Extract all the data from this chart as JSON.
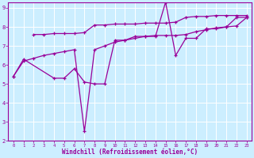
{
  "title": "",
  "xlabel": "Windchill (Refroidissement éolien,°C)",
  "ylabel": "",
  "bg_color": "#cceeff",
  "line_color": "#990099",
  "grid_color": "#ffffff",
  "xlim": [
    -0.5,
    23.5
  ],
  "ylim": [
    2,
    9.3
  ],
  "xticks": [
    0,
    1,
    2,
    3,
    4,
    5,
    6,
    7,
    8,
    9,
    10,
    11,
    12,
    13,
    14,
    15,
    16,
    17,
    18,
    19,
    20,
    21,
    22,
    23
  ],
  "yticks": [
    2,
    3,
    4,
    5,
    6,
    7,
    8,
    9
  ],
  "line1_x": [
    0,
    1,
    4,
    5,
    6,
    7,
    8,
    9,
    10,
    11,
    12,
    13,
    14,
    15,
    16,
    17,
    18,
    19,
    20,
    21,
    22,
    23
  ],
  "line1_y": [
    5.4,
    6.3,
    5.3,
    5.3,
    5.8,
    5.1,
    5.0,
    5.0,
    7.3,
    7.3,
    7.5,
    7.5,
    7.5,
    9.3,
    6.5,
    7.4,
    7.4,
    7.9,
    7.9,
    8.0,
    8.5,
    8.5
  ],
  "line2_x": [
    2,
    3,
    4,
    5,
    6,
    7,
    8,
    9,
    10,
    11,
    12,
    13,
    14,
    15,
    16,
    17,
    18,
    19,
    20,
    21,
    22,
    23
  ],
  "line2_y": [
    7.6,
    7.6,
    7.65,
    7.65,
    7.65,
    7.7,
    8.1,
    8.1,
    8.15,
    8.15,
    8.15,
    8.2,
    8.2,
    8.2,
    8.25,
    8.5,
    8.55,
    8.55,
    8.6,
    8.6,
    8.6,
    8.6
  ],
  "line3_x": [
    0,
    1,
    2,
    3,
    4,
    5,
    6,
    7,
    8,
    9,
    10,
    11,
    12,
    13,
    14,
    15,
    16,
    17,
    18,
    19,
    20,
    21,
    22,
    23
  ],
  "line3_y": [
    5.4,
    6.2,
    6.35,
    6.5,
    6.6,
    6.7,
    6.8,
    2.5,
    6.8,
    7.0,
    7.2,
    7.3,
    7.4,
    7.5,
    7.55,
    7.55,
    7.55,
    7.6,
    7.75,
    7.85,
    7.95,
    8.0,
    8.05,
    8.5
  ]
}
